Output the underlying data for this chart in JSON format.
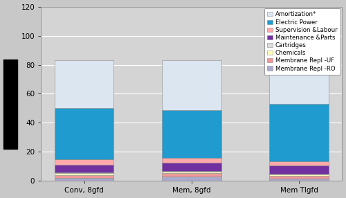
{
  "categories": [
    "Conv, 8gfd",
    "Mem, 8gfd",
    "Mem Tlgfd"
  ],
  "segments": [
    {
      "label": "Membrane Repl -RO",
      "color": "#aaaacc",
      "values": [
        2.0,
        3.0,
        1.5
      ]
    },
    {
      "label": "Membrane Repl -UF",
      "color": "#ee9999",
      "values": [
        2.0,
        2.5,
        2.0
      ]
    },
    {
      "label": "Chemicals",
      "color": "#ffffbb",
      "values": [
        1.5,
        1.0,
        1.0
      ]
    },
    {
      "label": "Cartridges",
      "color": "#dddddd",
      "values": [
        0.5,
        0.5,
        0.5
      ]
    },
    {
      "label": "Maintenance &Parts",
      "color": "#7030a0",
      "values": [
        5.0,
        5.5,
        5.5
      ]
    },
    {
      "label": "Supervision &Labour",
      "color": "#ffaaaa",
      "values": [
        4.0,
        3.5,
        3.0
      ]
    },
    {
      "label": "Electric Power",
      "color": "#1f9bcf",
      "values": [
        35.0,
        33.0,
        39.5
      ]
    },
    {
      "label": "Amortization*",
      "color": "#dce6f1",
      "values": [
        33.0,
        34.0,
        30.0
      ]
    }
  ],
  "ylim": [
    0,
    120
  ],
  "yticks": [
    0,
    20,
    40,
    60,
    80,
    100,
    120
  ],
  "bar_width": 0.55,
  "figsize": [
    5.0,
    2.86
  ],
  "dpi": 100,
  "bg_color": "#c8c8c8",
  "plot_bg_color": "#d4d4d4",
  "legend_fontsize": 6.2,
  "axis_fontsize": 7.5,
  "grid_color": "#ffffff",
  "spine_color": "#888888"
}
